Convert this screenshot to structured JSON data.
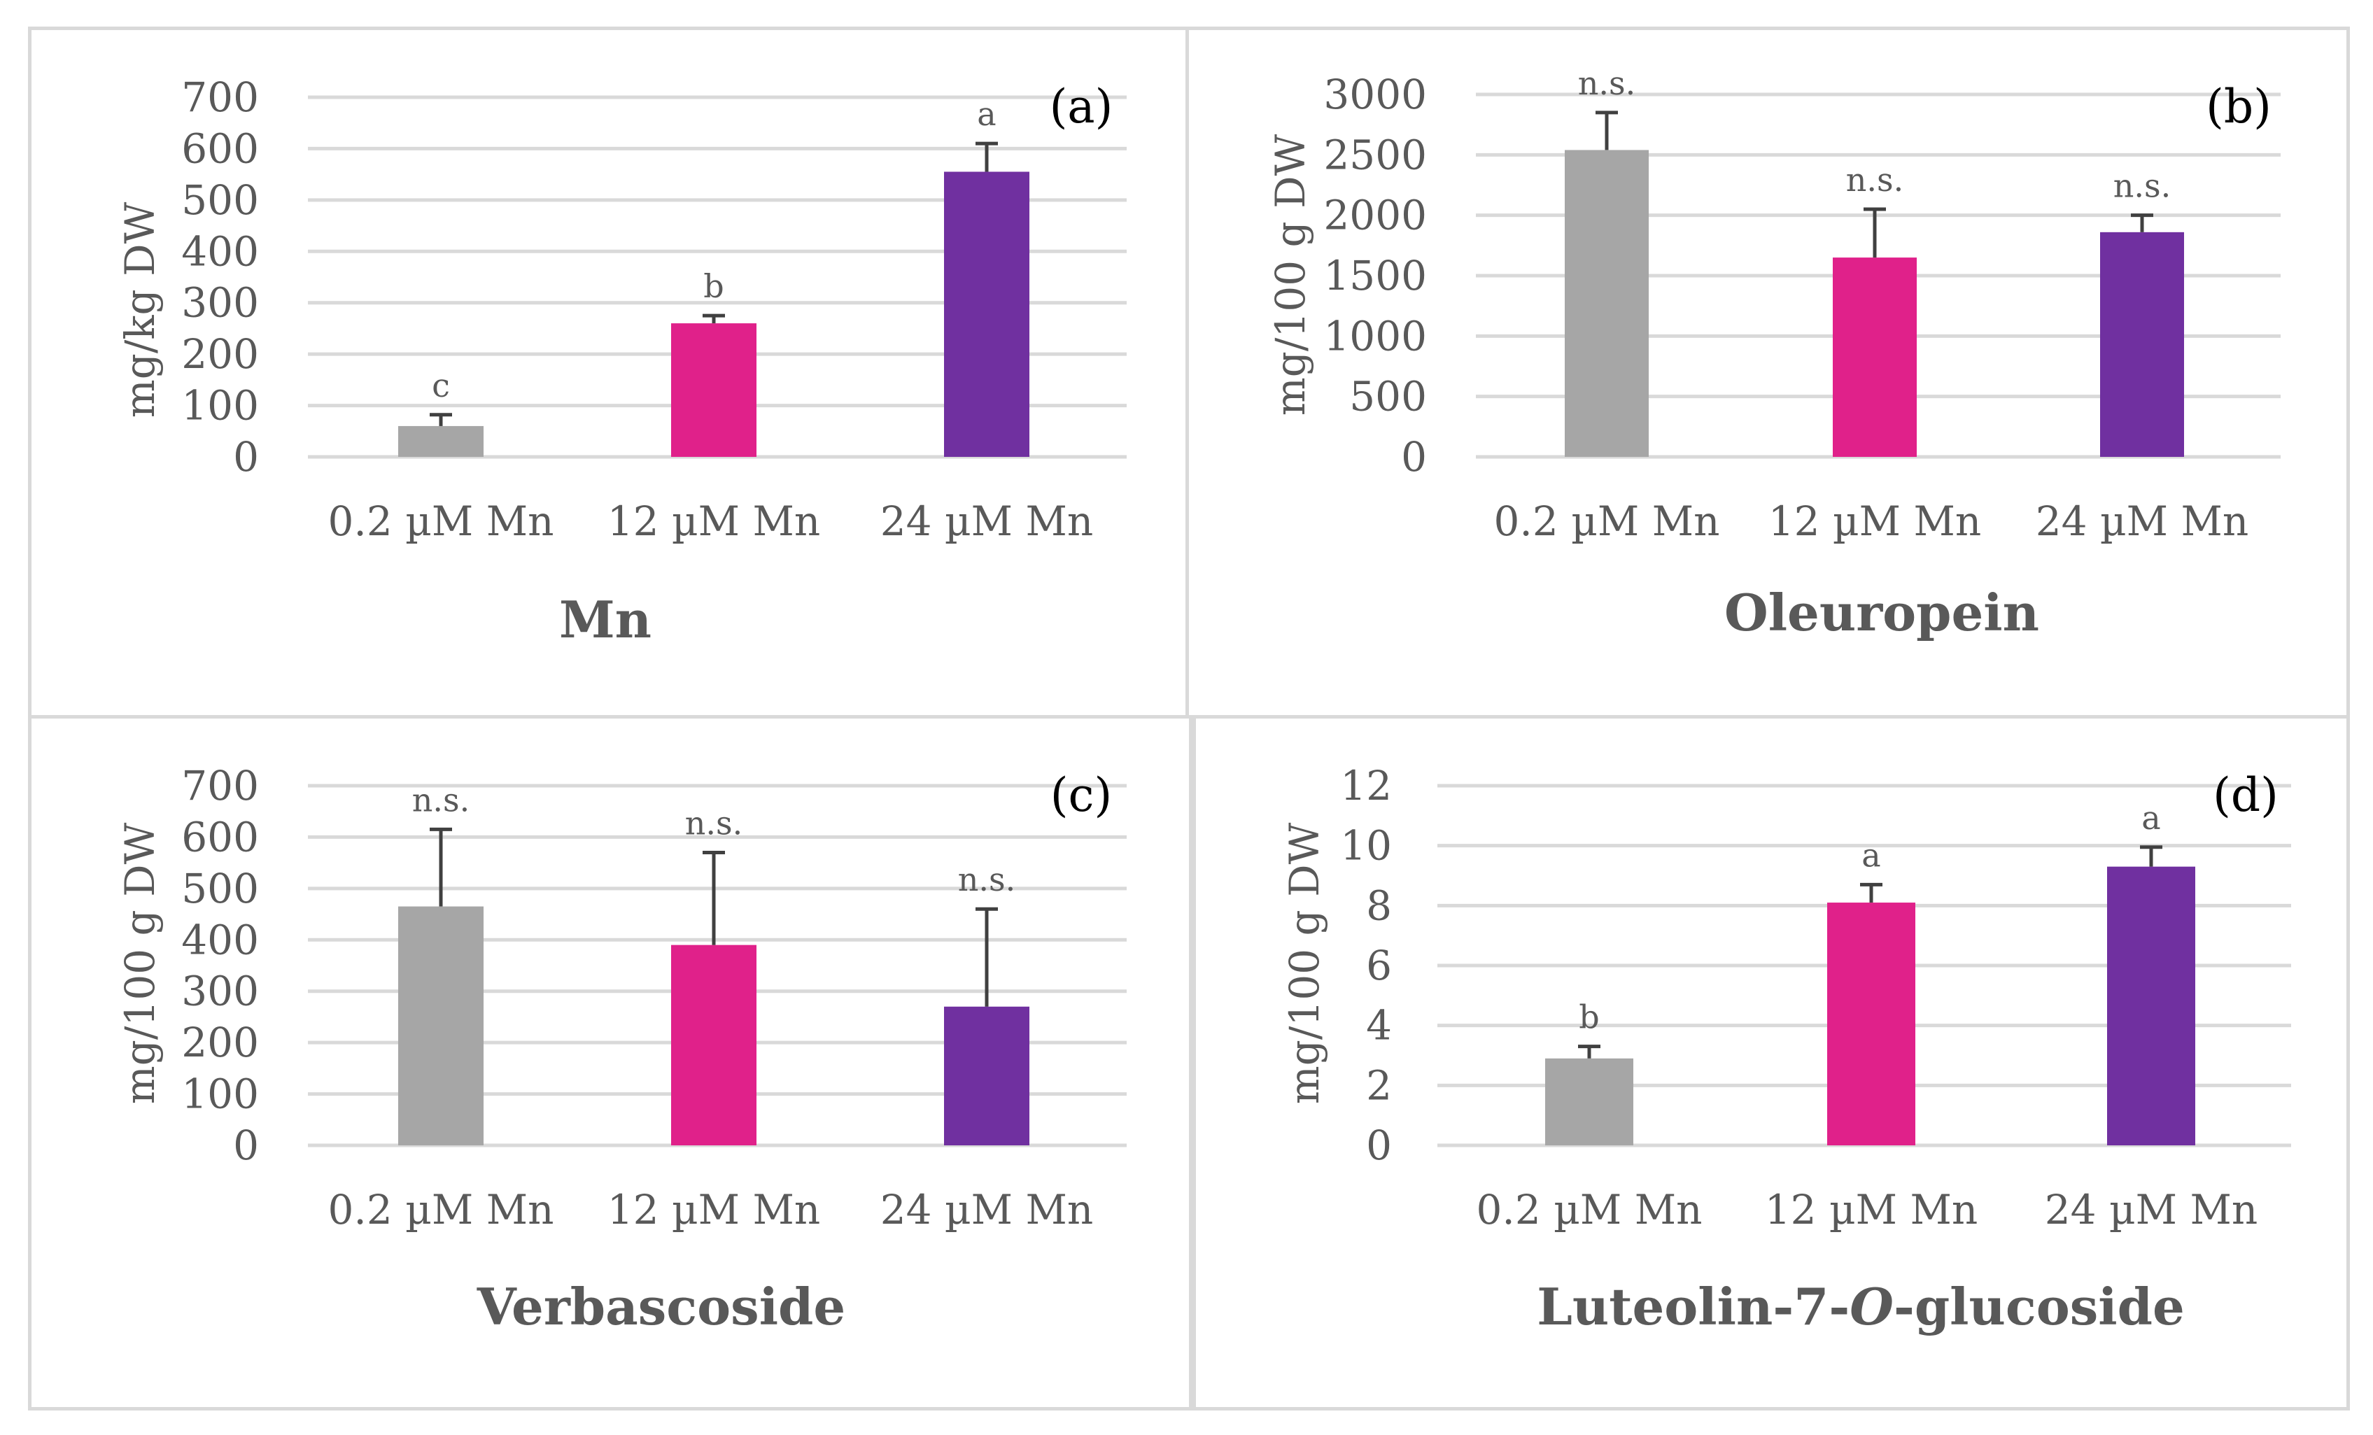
{
  "chart_data": [
    {
      "type": "bar",
      "panel_label": "(a)",
      "title": "Mn",
      "ylabel": "mg/kg DW",
      "xlabel": "",
      "categories": [
        "0.2 µM Mn",
        "12 µM Mn",
        "24 µM Mn"
      ],
      "values": [
        60,
        260,
        555
      ],
      "errors": [
        22,
        15,
        55
      ],
      "significance": [
        "c",
        "b",
        "a"
      ],
      "colors": [
        "#a6a6a6",
        "#e0218a",
        "#7030a0"
      ],
      "ylim": [
        0,
        700
      ],
      "yticks": [
        0,
        100,
        200,
        300,
        400,
        500,
        600,
        700
      ],
      "grid": true
    },
    {
      "type": "bar",
      "panel_label": "(b)",
      "title": "Oleuropein",
      "ylabel": "mg/100 g DW",
      "xlabel": "",
      "categories": [
        "0.2 µM Mn",
        "12 µM Mn",
        "24 µM Mn"
      ],
      "values": [
        2540,
        1650,
        1860
      ],
      "errors": [
        310,
        400,
        140
      ],
      "significance": [
        "n.s.",
        "n.s.",
        "n.s."
      ],
      "colors": [
        "#a6a6a6",
        "#e0218a",
        "#7030a0"
      ],
      "ylim": [
        0,
        3000
      ],
      "yticks": [
        0,
        500,
        1000,
        1500,
        2000,
        2500,
        3000
      ],
      "grid": true
    },
    {
      "type": "bar",
      "panel_label": "(c)",
      "title": "Verbascoside",
      "ylabel": "mg/100 g DW",
      "xlabel": "",
      "categories": [
        "0.2 µM Mn",
        "12 µM Mn",
        "24 µM Mn"
      ],
      "values": [
        465,
        390,
        270
      ],
      "errors": [
        150,
        180,
        190
      ],
      "significance": [
        "n.s.",
        "n.s.",
        "n.s."
      ],
      "colors": [
        "#a6a6a6",
        "#e0218a",
        "#7030a0"
      ],
      "ylim": [
        0,
        700
      ],
      "yticks": [
        0,
        100,
        200,
        300,
        400,
        500,
        600,
        700
      ],
      "grid": true
    },
    {
      "type": "bar",
      "panel_label": "(d)",
      "title_parts": [
        "Luteolin-7-",
        "O",
        "-glucoside"
      ],
      "ylabel": "mg/100 g DW",
      "xlabel": "",
      "categories": [
        "0.2 µM Mn",
        "12 µM Mn",
        "24 µM Mn"
      ],
      "values": [
        2.9,
        8.1,
        9.3
      ],
      "errors": [
        0.4,
        0.6,
        0.65
      ],
      "significance": [
        "b",
        "a",
        "a"
      ],
      "colors": [
        "#a6a6a6",
        "#e0218a",
        "#7030a0"
      ],
      "ylim": [
        0,
        12
      ],
      "yticks": [
        0,
        2,
        4,
        6,
        8,
        10,
        12
      ],
      "grid": true
    }
  ]
}
